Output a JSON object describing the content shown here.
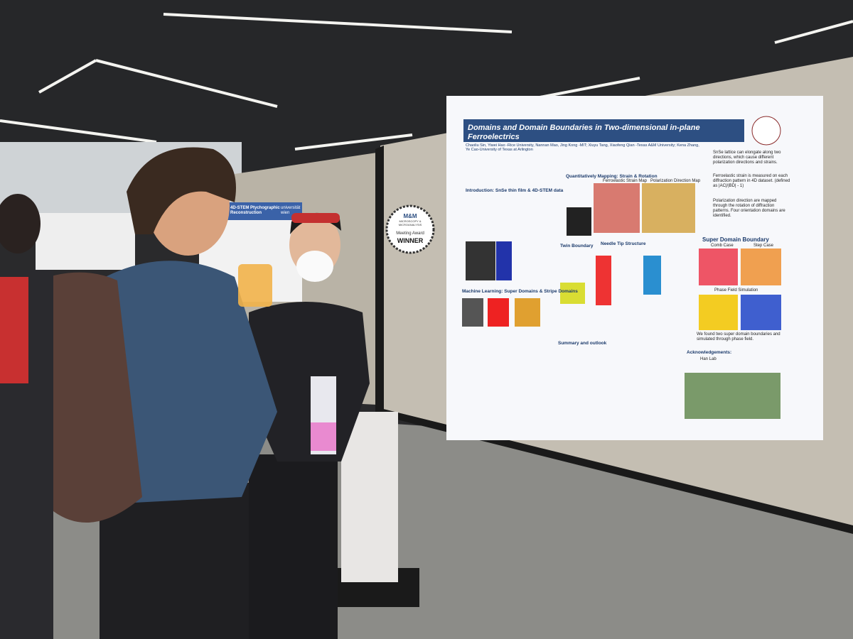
{
  "left_poster": {
    "title": "4D-STEM Ptychographic Reconstruction",
    "logo": "universität wien"
  },
  "badge": {
    "logo": "M&M",
    "society": "MICROSCOPY & MICROANALYSIS",
    "award": "Meeting Award",
    "status": "WINNER"
  },
  "poster": {
    "title": "Domains and Domain Boundaries in Two-dimensional in-plane Ferroelectrics",
    "authors": "Chaoliu Sin, Yiwei Hao -Rice University, Nannan Mao, Jing Kong -MIT; Xiuyu Tang, Xiaofeng Qian -Texas A&M University; Kena Zhang, Ye Cao-University of Texas at Arlington",
    "sections": {
      "intro": "Introduction: SnSe thin film & 4D-STEM data",
      "mapping": "Quantitatively Mapping: Strain & Rotation",
      "strain_map": "Ferroelastic Strain Map",
      "polarization_map": "Polarization Direction Map",
      "twin": "Twin Boundary",
      "needle": "Needle Tip Structure",
      "super": "Super Domain Boundary",
      "comb": "Comb Case",
      "step": "Step Case",
      "phase_field": "Phase Field Simulation",
      "ml": "Machine Learning: Super Domains & Stripe Domains",
      "summary": "Summary and outlook",
      "ack": "Acknowledgements:",
      "lab": "Han Lab"
    },
    "notes": [
      "SnSe lattice can elongate along two directions, which cause different polarization directions and strains.",
      "Ferroelastic strain is measured on each diffraction pattern in 4D dataset. (defined as |AC|/|BD| - 1)",
      "Polarization direction are mapped through the rotation of diffraction patterns. Four orientation domains are identified."
    ],
    "super_caption": "We found two super domain boundaries and simulated through phase field."
  }
}
